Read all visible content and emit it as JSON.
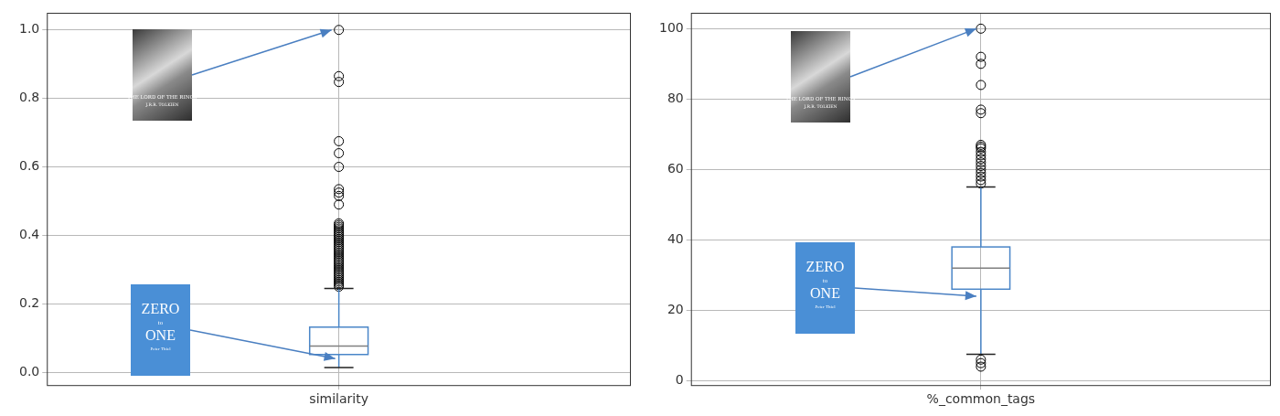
{
  "chart_data": [
    {
      "type": "boxplot",
      "categories": [
        "similarity"
      ],
      "color": "#4a86c8",
      "box": {
        "whisker_low": 0.014,
        "q1": 0.052,
        "median": 0.077,
        "q3": 0.132,
        "whisker_high": 0.245
      },
      "outliers": [
        1.0,
        0.865,
        0.848,
        0.675,
        0.64,
        0.6,
        0.535,
        0.525,
        0.515,
        0.49,
        0.435,
        0.43,
        0.425,
        0.42,
        0.415,
        0.41,
        0.405,
        0.4,
        0.395,
        0.39,
        0.385,
        0.38,
        0.375,
        0.37,
        0.365,
        0.36,
        0.355,
        0.35,
        0.345,
        0.34,
        0.335,
        0.33,
        0.325,
        0.32,
        0.315,
        0.31,
        0.305,
        0.3,
        0.295,
        0.29,
        0.285,
        0.28,
        0.275,
        0.27,
        0.265,
        0.26,
        0.255,
        0.25
      ],
      "annotations": [
        {
          "text": [
            "THE LORD OF THE RINGS",
            "J.R.R. TOLKIEN"
          ],
          "value": 1.0
        },
        {
          "text": [
            "ZERO",
            "to",
            "ONE",
            "Peter Thiel"
          ],
          "value": 0.04
        }
      ],
      "ylim": [
        -0.04,
        1.05
      ],
      "yticks": [
        {
          "value": 0,
          "label": "0.0"
        },
        0.2,
        0.4,
        0.6,
        0.8,
        {
          "value": 1,
          "label": "1.0"
        }
      ],
      "grid": true
    },
    {
      "type": "boxplot",
      "categories": [
        "%_common_tags"
      ],
      "color": "#4a86c8",
      "box": {
        "whisker_low": 7.5,
        "q1": 26,
        "median": 32,
        "q3": 38,
        "whisker_high": 55
      },
      "outliers": [
        100,
        92,
        90,
        84,
        77,
        76,
        67,
        66.5,
        66,
        65,
        64,
        63,
        62,
        61,
        60,
        59,
        58,
        57,
        56,
        6,
        5,
        4
      ],
      "annotations": [
        {
          "text": [
            "THE LORD OF THE RINGS",
            "J.R.R. TOLKIEN"
          ],
          "value": 100
        },
        {
          "text": [
            "ZERO",
            "to",
            "ONE",
            "Peter Thiel"
          ],
          "value": 24
        }
      ],
      "ylim": [
        -1.5,
        104.5
      ],
      "yticks": [
        0,
        20,
        40,
        60,
        80,
        100
      ],
      "grid": true
    }
  ]
}
